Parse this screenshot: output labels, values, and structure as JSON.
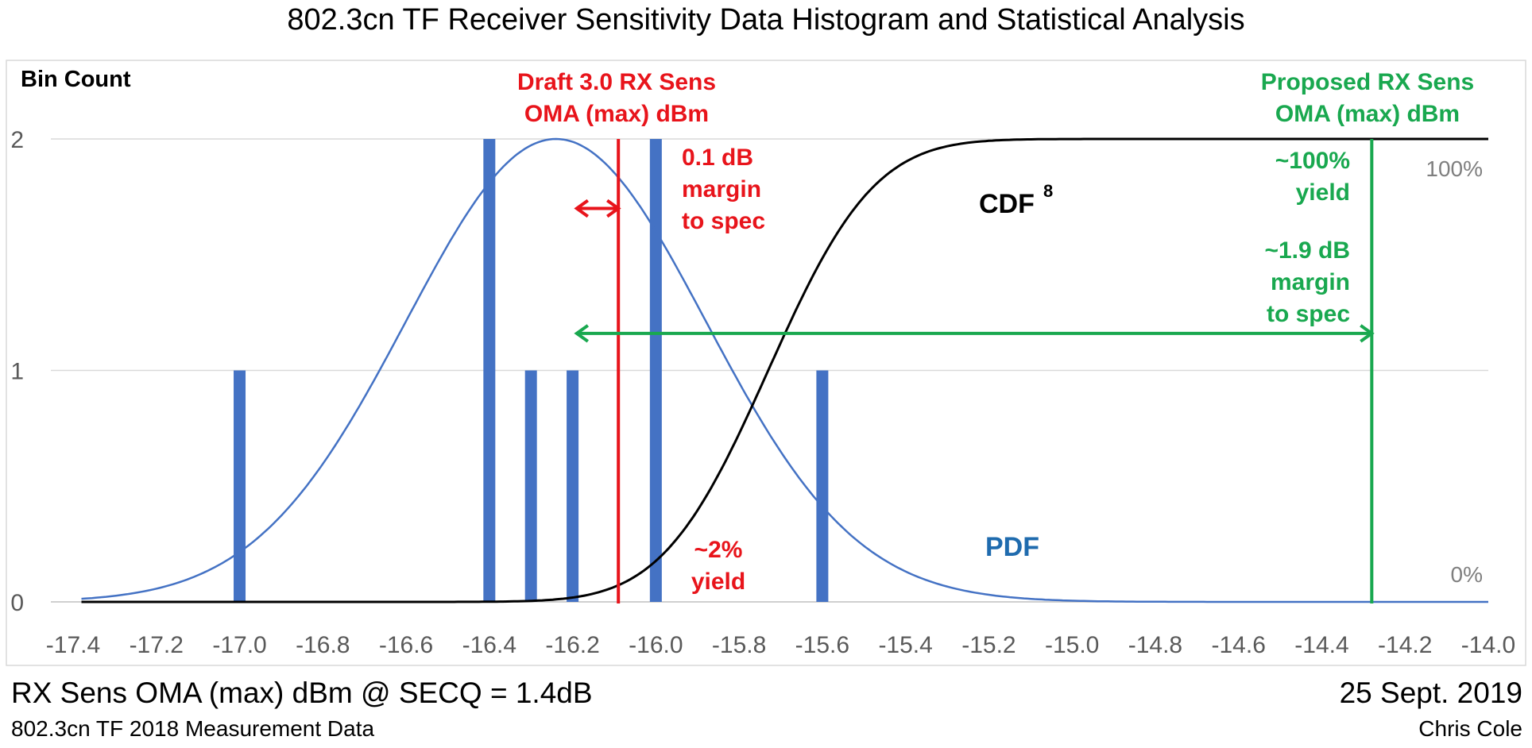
{
  "title": "802.3cn TF Receiver Sensitivity Data Histogram and Statistical Analysis",
  "xlabel": "RX Sens OMA (max) dBm @ SECQ = 1.4dB",
  "subtitle": "802.3cn TF 2018 Measurement Data",
  "date": "25 Sept. 2019",
  "author": "Chris Cole",
  "colors": {
    "bars": "#4472C4",
    "pdf": "#4472C4",
    "cdf": "#000000",
    "red": "#E8141B",
    "green": "#19A84F",
    "grid": "#D9D9D9",
    "tick": "#595959",
    "pct": "#7F7F7F"
  },
  "chart_data": {
    "type": "bar",
    "ylabel": "Bin Count",
    "xlim": [
      -17.4,
      -14.0
    ],
    "ylim": [
      0,
      2
    ],
    "yticks": [
      "0",
      "1",
      "2"
    ],
    "xticks": [
      "-17.4",
      "-17.2",
      "-17.0",
      "-16.8",
      "-16.6",
      "-16.4",
      "-16.2",
      "-16.0",
      "-15.8",
      "-15.6",
      "-15.4",
      "-15.2",
      "-15.0",
      "-14.8",
      "-14.6",
      "-14.4",
      "-14.2",
      "-14.0"
    ],
    "bars": [
      {
        "x": -17.0,
        "count": 1
      },
      {
        "x": -16.4,
        "count": 2
      },
      {
        "x": -16.3,
        "count": 1
      },
      {
        "x": -16.2,
        "count": 1
      },
      {
        "x": -16.0,
        "count": 2
      },
      {
        "x": -15.6,
        "count": 1
      }
    ],
    "pdf": {
      "label": "PDF",
      "mean": -16.24,
      "sigma": 0.36,
      "peak": 2
    },
    "cdf": {
      "label": "CDF",
      "superscript": "8",
      "mean": -15.73,
      "sigma": 0.2,
      "ymax": 2
    },
    "pct_labels": {
      "top": "100%",
      "bottom": "0%"
    },
    "spec_lines": [
      {
        "x": -16.09,
        "title_lines": [
          "Draft 3.0 RX Sens",
          "OMA (max) dBm"
        ],
        "margin_lines": [
          "0.1 dB",
          "margin",
          "to spec"
        ],
        "yield_lines": [
          "~2%",
          "yield"
        ]
      },
      {
        "x": -14.28,
        "title_lines": [
          "Proposed RX Sens",
          "OMA (max) dBm"
        ],
        "yield_lines": [
          "~100%",
          "yield"
        ],
        "margin_lines": [
          "~1.9 dB",
          "margin",
          "to spec"
        ]
      }
    ],
    "arrows": [
      {
        "from": -16.19,
        "to": -16.09,
        "y": 1.7
      },
      {
        "from": -16.19,
        "to": -14.28,
        "y": 1.16
      }
    ]
  }
}
